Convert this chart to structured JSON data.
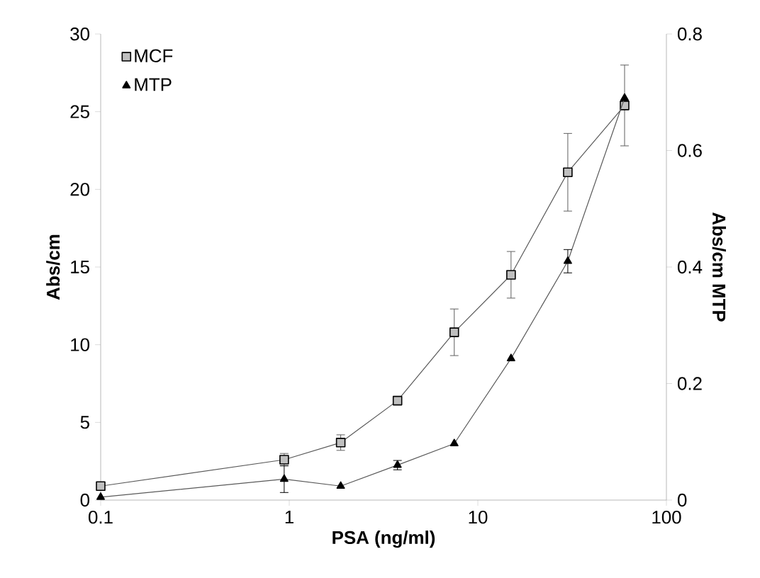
{
  "chart_data": {
    "type": "line",
    "xlabel": "PSA (ng/ml)",
    "ylabel": "Abs/cm",
    "y2label": "Abs/cm MTP",
    "log": "x",
    "grid": false,
    "legend": "top left",
    "line_style": "solid",
    "xlim": [
      0.1,
      100
    ],
    "xticks": [
      0.1,
      1,
      10,
      100
    ],
    "ylim": [
      0,
      30
    ],
    "yticks": [
      0,
      5,
      10,
      15,
      20,
      25,
      30
    ],
    "y2lim": [
      0,
      0.8
    ],
    "y2ticks": [
      0,
      0.2,
      0.4,
      0.6,
      0.8
    ],
    "series": [
      {
        "name": "MCF",
        "color": "#bfbfbf",
        "marker": "square",
        "x": [
          0.1,
          0.94,
          1.875,
          3.75,
          7.5,
          15,
          30,
          60
        ],
        "values": [
          0.9,
          2.6,
          3.7,
          6.4,
          10.8,
          14.5,
          21.1,
          25.4
        ],
        "errors": [
          null,
          0.4,
          0.5,
          null,
          1.5,
          1.5,
          2.5,
          2.6
        ]
      },
      {
        "name": "MTP",
        "color": "#000000",
        "marker": "triangle",
        "axis": "y2",
        "x": [
          0.1,
          0.94,
          1.875,
          3.75,
          7.5,
          15,
          30,
          60
        ],
        "values": [
          0.005,
          0.036,
          0.024,
          0.06,
          0.097,
          0.243,
          0.41,
          0.69
        ],
        "errors": [
          null,
          0.023,
          null,
          0.008,
          null,
          null,
          0.02,
          null
        ]
      }
    ]
  }
}
